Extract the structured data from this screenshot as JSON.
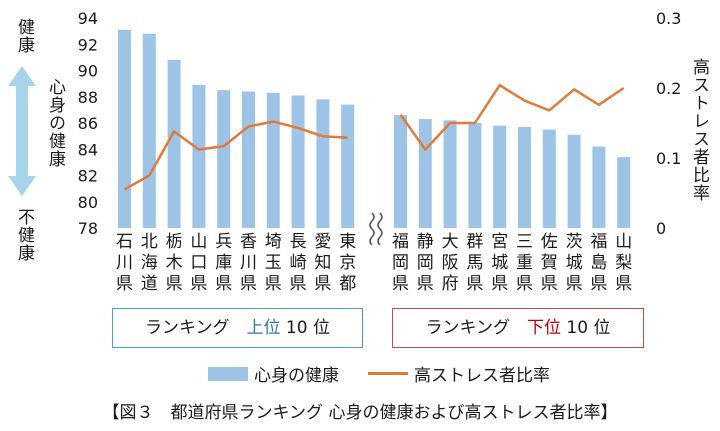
{
  "chart_data": {
    "type": "bar+line",
    "caption": "【図３　都道府県ランキング 心身の健康および高ストレス者比率】",
    "left_axis": {
      "min": 78,
      "max": 94,
      "ticks": [
        "78",
        "80",
        "82",
        "84",
        "86",
        "88",
        "90",
        "92",
        "94"
      ]
    },
    "right_axis": {
      "min": 0,
      "max": 0.3,
      "ticks": [
        "0",
        "0.1",
        "0.2",
        "0.3"
      ],
      "label": "高ストレス者比率"
    },
    "left_axis_labels": {
      "top": "健康",
      "middle": "心身の健康",
      "bottom": "不健康"
    },
    "groups": [
      {
        "label": "ランキング　上位 10 位",
        "label_parts": {
          "pre": "ランキング　",
          "hl": "上位",
          "post": " 10 位"
        },
        "highlight_color": "#2e75b6",
        "border_color": "#4ba3c3",
        "categories": [
          "石川県",
          "北海道",
          "栃木県",
          "山口県",
          "兵庫県",
          "香川県",
          "埼玉県",
          "長崎県",
          "愛知県",
          "東京都"
        ],
        "health": [
          93.1,
          92.8,
          90.8,
          88.9,
          88.5,
          88.4,
          88.3,
          88.1,
          87.8,
          87.4
        ],
        "stress": [
          0.055,
          0.075,
          0.138,
          0.112,
          0.117,
          0.145,
          0.152,
          0.143,
          0.131,
          0.129
        ]
      },
      {
        "label": "ランキング　下位 10 位",
        "label_parts": {
          "pre": "ランキング　",
          "hl": "下位",
          "post": " 10 位"
        },
        "highlight_color": "#c00000",
        "border_color": "#c0504d",
        "categories": [
          "福岡県",
          "静岡県",
          "大阪府",
          "群馬県",
          "宮城県",
          "三重県",
          "佐賀県",
          "茨城県",
          "福島県",
          "山梨県"
        ],
        "health": [
          86.6,
          86.3,
          86.2,
          86.0,
          85.8,
          85.7,
          85.5,
          85.1,
          84.2,
          83.4
        ],
        "stress": [
          0.162,
          0.112,
          0.15,
          0.15,
          0.204,
          0.182,
          0.168,
          0.198,
          0.176,
          0.2
        ]
      }
    ],
    "legend": [
      {
        "name": "心身の健康",
        "type": "bar",
        "color": "#9dc3e6"
      },
      {
        "name": "高ストレス者比率",
        "type": "line",
        "color": "#e07b39"
      }
    ],
    "axis_break": true
  }
}
